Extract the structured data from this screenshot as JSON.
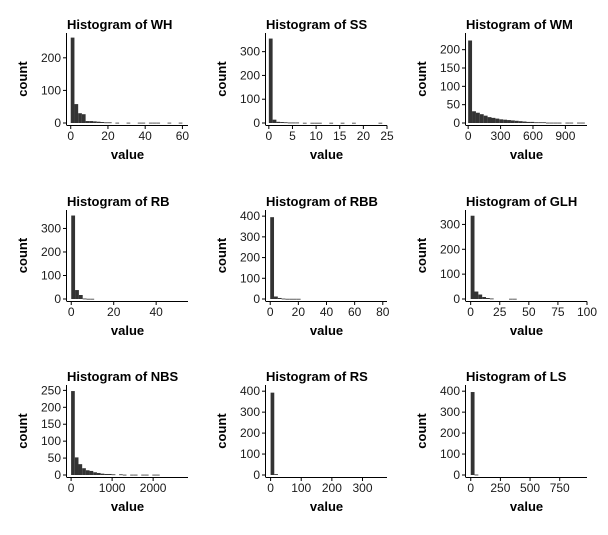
{
  "chart_data": [
    {
      "type": "bar",
      "title": "Histogram of WH",
      "xlabel": "value",
      "ylabel": "count",
      "xlim": [
        -2,
        63
      ],
      "ylim": [
        0,
        270
      ],
      "xticks": [
        0,
        20,
        40,
        60
      ],
      "yticks": [
        0,
        100,
        200
      ],
      "bin_width": 2,
      "bins": [
        {
          "x": 0,
          "y": 262
        },
        {
          "x": 2,
          "y": 58
        },
        {
          "x": 4,
          "y": 30
        },
        {
          "x": 6,
          "y": 27
        },
        {
          "x": 8,
          "y": 6
        },
        {
          "x": 10,
          "y": 6
        },
        {
          "x": 12,
          "y": 5
        },
        {
          "x": 14,
          "y": 4
        },
        {
          "x": 16,
          "y": 3
        },
        {
          "x": 18,
          "y": 2
        },
        {
          "x": 20,
          "y": 2
        },
        {
          "x": 24,
          "y": 1
        },
        {
          "x": 30,
          "y": 1
        },
        {
          "x": 36,
          "y": 1
        },
        {
          "x": 38,
          "y": 1
        },
        {
          "x": 42,
          "y": 1
        },
        {
          "x": 44,
          "y": 1
        },
        {
          "x": 46,
          "y": 1
        },
        {
          "x": 52,
          "y": 1
        },
        {
          "x": 58,
          "y": 1
        }
      ]
    },
    {
      "type": "bar",
      "title": "Histogram of SS",
      "xlabel": "value",
      "ylabel": "count",
      "xlim": [
        -0.6,
        25
      ],
      "ylim": [
        0,
        370
      ],
      "xticks": [
        0,
        5,
        10,
        15,
        20,
        25
      ],
      "yticks": [
        0,
        100,
        200,
        300
      ],
      "bin_width": 0.8,
      "bins": [
        {
          "x": 0,
          "y": 355
        },
        {
          "x": 0.8,
          "y": 14
        },
        {
          "x": 1.6,
          "y": 5
        },
        {
          "x": 2.4,
          "y": 4
        },
        {
          "x": 3.2,
          "y": 3
        },
        {
          "x": 4.0,
          "y": 2
        },
        {
          "x": 4.8,
          "y": 2
        },
        {
          "x": 5.6,
          "y": 2
        },
        {
          "x": 7.2,
          "y": 1
        },
        {
          "x": 8.8,
          "y": 1
        },
        {
          "x": 9.6,
          "y": 1
        },
        {
          "x": 10.4,
          "y": 1
        },
        {
          "x": 12.8,
          "y": 1
        },
        {
          "x": 15.2,
          "y": 1
        },
        {
          "x": 17.6,
          "y": 1
        },
        {
          "x": 23.2,
          "y": 1
        }
      ]
    },
    {
      "type": "bar",
      "title": "Histogram of WM",
      "xlabel": "value",
      "ylabel": "count",
      "xlim": [
        -20,
        1100
      ],
      "ylim": [
        0,
        240
      ],
      "xticks": [
        0,
        300,
        600,
        900
      ],
      "yticks": [
        0,
        50,
        100,
        150,
        200
      ],
      "bin_width": 36,
      "bins": [
        {
          "x": 0,
          "y": 225
        },
        {
          "x": 36,
          "y": 32
        },
        {
          "x": 72,
          "y": 28
        },
        {
          "x": 108,
          "y": 24
        },
        {
          "x": 144,
          "y": 20
        },
        {
          "x": 180,
          "y": 16
        },
        {
          "x": 216,
          "y": 14
        },
        {
          "x": 252,
          "y": 12
        },
        {
          "x": 288,
          "y": 10
        },
        {
          "x": 324,
          "y": 9
        },
        {
          "x": 360,
          "y": 8
        },
        {
          "x": 396,
          "y": 7
        },
        {
          "x": 432,
          "y": 6
        },
        {
          "x": 468,
          "y": 5
        },
        {
          "x": 504,
          "y": 4
        },
        {
          "x": 540,
          "y": 3
        },
        {
          "x": 576,
          "y": 3
        },
        {
          "x": 612,
          "y": 2
        },
        {
          "x": 648,
          "y": 2
        },
        {
          "x": 684,
          "y": 2
        },
        {
          "x": 720,
          "y": 1
        },
        {
          "x": 756,
          "y": 1
        },
        {
          "x": 792,
          "y": 1
        },
        {
          "x": 828,
          "y": 1
        },
        {
          "x": 900,
          "y": 1
        },
        {
          "x": 936,
          "y": 1
        },
        {
          "x": 1008,
          "y": 1
        },
        {
          "x": 1044,
          "y": 1
        }
      ]
    },
    {
      "type": "bar",
      "title": "Histogram of RB",
      "xlabel": "value",
      "ylabel": "count",
      "xlim": [
        -2,
        55
      ],
      "ylim": [
        0,
        370
      ],
      "xticks": [
        0,
        20,
        40
      ],
      "yticks": [
        0,
        100,
        200,
        300
      ],
      "bin_width": 1.8,
      "bins": [
        {
          "x": 0,
          "y": 355
        },
        {
          "x": 1.8,
          "y": 38
        },
        {
          "x": 3.6,
          "y": 17
        },
        {
          "x": 5.4,
          "y": 2
        },
        {
          "x": 7.2,
          "y": 1
        },
        {
          "x": 9.0,
          "y": 1
        }
      ]
    },
    {
      "type": "bar",
      "title": "Histogram of RBB",
      "xlabel": "value",
      "ylabel": "count",
      "xlim": [
        -3,
        83
      ],
      "ylim": [
        0,
        420
      ],
      "xticks": [
        0,
        20,
        40,
        60,
        80
      ],
      "yticks": [
        0,
        100,
        200,
        300,
        400
      ],
      "bin_width": 2.7,
      "bins": [
        {
          "x": 0,
          "y": 395
        },
        {
          "x": 2.7,
          "y": 12
        },
        {
          "x": 5.4,
          "y": 5
        },
        {
          "x": 8.1,
          "y": 2
        },
        {
          "x": 10.8,
          "y": 1
        },
        {
          "x": 13.5,
          "y": 1
        },
        {
          "x": 16.2,
          "y": 1
        },
        {
          "x": 18.9,
          "y": 1
        }
      ]
    },
    {
      "type": "bar",
      "title": "Histogram of GLH",
      "xlabel": "value",
      "ylabel": "count",
      "xlim": [
        -4,
        100
      ],
      "ylim": [
        0,
        350
      ],
      "xticks": [
        0,
        25,
        50,
        75,
        100
      ],
      "yticks": [
        0,
        100,
        200,
        300
      ],
      "bin_width": 3.3,
      "bins": [
        {
          "x": 0,
          "y": 335
        },
        {
          "x": 3.3,
          "y": 30
        },
        {
          "x": 6.6,
          "y": 18
        },
        {
          "x": 9.9,
          "y": 8
        },
        {
          "x": 13.2,
          "y": 4
        },
        {
          "x": 16.5,
          "y": 2
        },
        {
          "x": 33,
          "y": 1
        },
        {
          "x": 36.3,
          "y": 1
        }
      ]
    },
    {
      "type": "bar",
      "title": "Histogram of NBS",
      "xlabel": "value",
      "ylabel": "count",
      "xlim": [
        -100,
        2850
      ],
      "ylim": [
        0,
        260
      ],
      "xticks": [
        0,
        1000,
        2000
      ],
      "yticks": [
        0,
        50,
        100,
        150,
        200,
        250
      ],
      "bin_width": 90,
      "bins": [
        {
          "x": 0,
          "y": 248
        },
        {
          "x": 90,
          "y": 52
        },
        {
          "x": 180,
          "y": 32
        },
        {
          "x": 270,
          "y": 20
        },
        {
          "x": 360,
          "y": 14
        },
        {
          "x": 450,
          "y": 12
        },
        {
          "x": 540,
          "y": 8
        },
        {
          "x": 630,
          "y": 6
        },
        {
          "x": 720,
          "y": 4
        },
        {
          "x": 810,
          "y": 3
        },
        {
          "x": 900,
          "y": 3
        },
        {
          "x": 990,
          "y": 2
        },
        {
          "x": 1170,
          "y": 2
        },
        {
          "x": 1260,
          "y": 1
        },
        {
          "x": 1440,
          "y": 1
        },
        {
          "x": 1530,
          "y": 1
        },
        {
          "x": 1710,
          "y": 1
        },
        {
          "x": 1800,
          "y": 1
        },
        {
          "x": 1980,
          "y": 1
        },
        {
          "x": 2070,
          "y": 1
        }
      ]
    },
    {
      "type": "bar",
      "title": "Histogram of RS",
      "xlabel": "value",
      "ylabel": "count",
      "xlim": [
        -15,
        380
      ],
      "ylim": [
        0,
        420
      ],
      "xticks": [
        0,
        100,
        200,
        300
      ],
      "yticks": [
        0,
        100,
        200,
        300,
        400
      ],
      "bin_width": 12,
      "bins": [
        {
          "x": 0,
          "y": 393
        },
        {
          "x": 12,
          "y": 4
        }
      ]
    },
    {
      "type": "bar",
      "title": "Histogram of LS",
      "xlabel": "value",
      "ylabel": "count",
      "xlim": [
        -40,
        980
      ],
      "ylim": [
        0,
        420
      ],
      "xticks": [
        0,
        250,
        500,
        750
      ],
      "yticks": [
        0,
        100,
        200,
        300,
        400
      ],
      "bin_width": 32,
      "bins": [
        {
          "x": 0,
          "y": 396
        },
        {
          "x": 32,
          "y": 2
        }
      ]
    }
  ]
}
